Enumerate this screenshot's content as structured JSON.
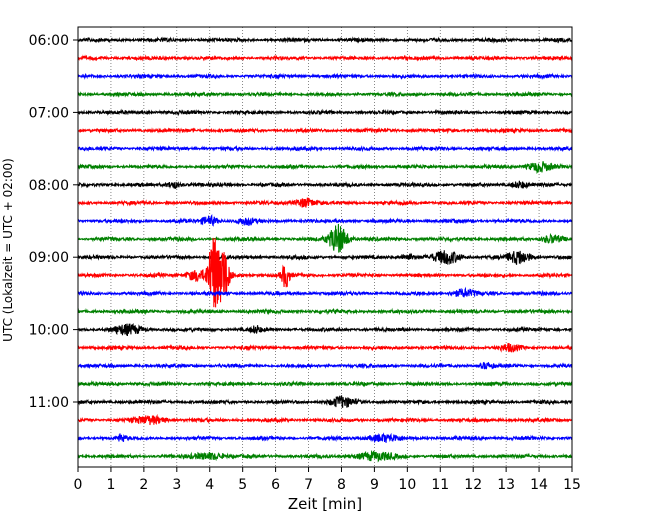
{
  "chart_data": {
    "type": "line",
    "title": "",
    "xlabel": "Zeit  [min]",
    "ylabel": "UTC (Lokalzeit = UTC + 02:00)",
    "xlim": [
      0,
      15
    ],
    "x_ticks": [
      0,
      1,
      2,
      3,
      4,
      5,
      6,
      7,
      8,
      9,
      10,
      11,
      12,
      13,
      14,
      15
    ],
    "y_tick_labels": [
      "06:00",
      "07:00",
      "08:00",
      "09:00",
      "10:00",
      "11:00"
    ],
    "y_tick_row_index": [
      0,
      4,
      8,
      12,
      16,
      20
    ],
    "grid": "vertical dotted at each minute",
    "row_colors": [
      "#000000",
      "#ff0000",
      "#0000ff",
      "#008000"
    ],
    "rows": 24,
    "row_minutes": 15,
    "start_time_utc": "06:00",
    "events": [
      {
        "row": 7,
        "minute": 14.0,
        "amp": 0.5,
        "width": 0.35
      },
      {
        "row": 8,
        "minute": 2.9,
        "amp": 0.35,
        "width": 0.2
      },
      {
        "row": 8,
        "minute": 13.4,
        "amp": 0.35,
        "width": 0.25
      },
      {
        "row": 9,
        "minute": 6.9,
        "amp": 0.5,
        "width": 0.3
      },
      {
        "row": 10,
        "minute": 4.0,
        "amp": 0.5,
        "width": 0.25
      },
      {
        "row": 10,
        "minute": 5.1,
        "amp": 0.35,
        "width": 0.25
      },
      {
        "row": 11,
        "minute": 7.9,
        "amp": 1.6,
        "width": 0.28
      },
      {
        "row": 11,
        "minute": 14.4,
        "amp": 0.45,
        "width": 0.3
      },
      {
        "row": 12,
        "minute": 11.2,
        "amp": 0.7,
        "width": 0.4
      },
      {
        "row": 12,
        "minute": 13.4,
        "amp": 0.7,
        "width": 0.35
      },
      {
        "row": 12,
        "minute": 10.0,
        "amp": 0.35,
        "width": 0.2
      },
      {
        "row": 13,
        "minute": 4.1,
        "amp": 4.5,
        "width": 0.15
      },
      {
        "row": 13,
        "minute": 4.4,
        "amp": 3.0,
        "width": 0.18
      },
      {
        "row": 13,
        "minute": 3.6,
        "amp": 0.6,
        "width": 0.3
      },
      {
        "row": 13,
        "minute": 6.3,
        "amp": 1.3,
        "width": 0.12
      },
      {
        "row": 14,
        "minute": 11.7,
        "amp": 0.4,
        "width": 0.35
      },
      {
        "row": 16,
        "minute": 1.5,
        "amp": 0.5,
        "width": 0.45
      },
      {
        "row": 16,
        "minute": 5.4,
        "amp": 0.35,
        "width": 0.15
      },
      {
        "row": 17,
        "minute": 13.1,
        "amp": 0.35,
        "width": 0.3
      },
      {
        "row": 18,
        "minute": 12.4,
        "amp": 0.3,
        "width": 0.2
      },
      {
        "row": 20,
        "minute": 8.0,
        "amp": 0.55,
        "width": 0.35
      },
      {
        "row": 21,
        "minute": 2.2,
        "amp": 0.4,
        "width": 0.5
      },
      {
        "row": 22,
        "minute": 1.3,
        "amp": 0.35,
        "width": 0.15
      },
      {
        "row": 22,
        "minute": 9.3,
        "amp": 0.35,
        "width": 0.5
      },
      {
        "row": 23,
        "minute": 9.0,
        "amp": 0.4,
        "width": 0.6
      },
      {
        "row": 23,
        "minute": 4.0,
        "amp": 0.35,
        "width": 0.5
      }
    ]
  }
}
